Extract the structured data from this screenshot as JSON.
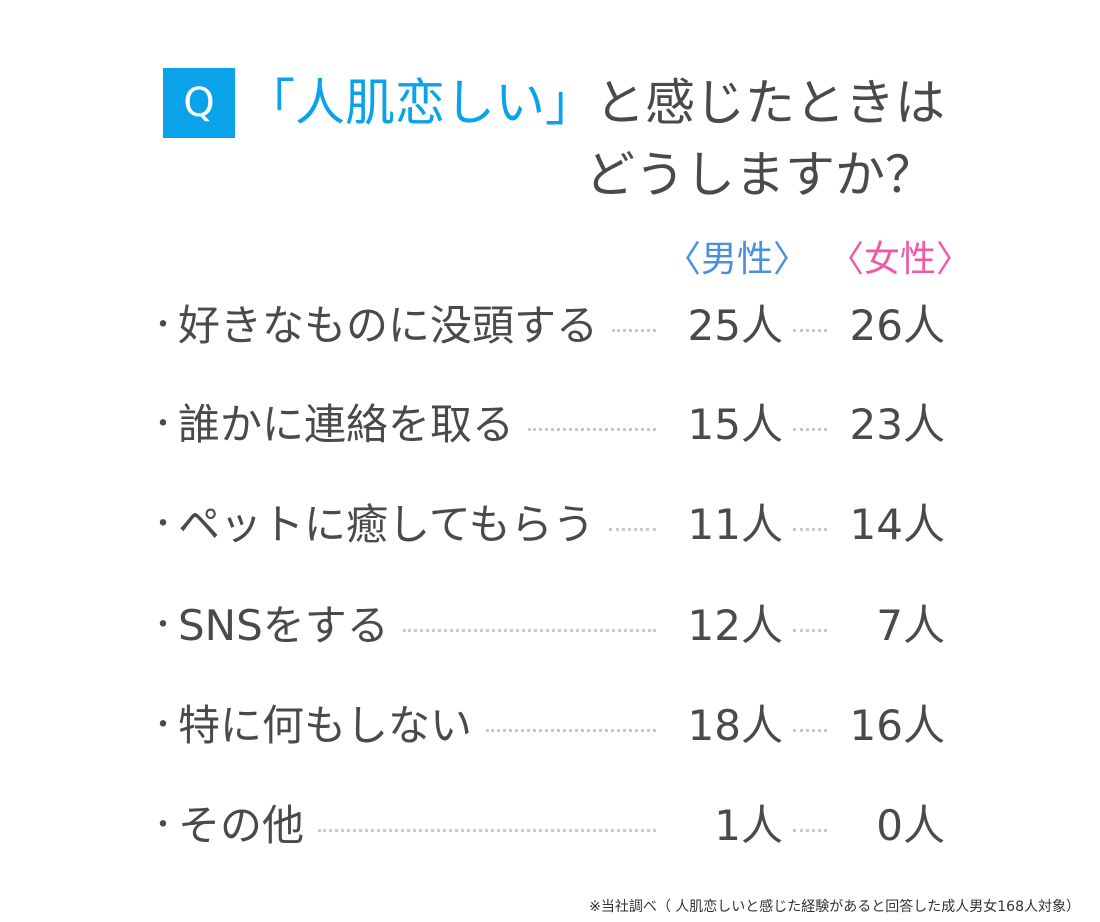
{
  "question": {
    "badge": "Q",
    "highlight": "「人肌恋しい」",
    "line1_rest": "と感じたときは",
    "line2": "どうしますか？"
  },
  "headers": {
    "male": "〈男性〉",
    "female": "〈女性〉"
  },
  "bullet": "・",
  "rows": [
    {
      "label": "好きなものに没頭する",
      "male": "25人",
      "female": "26人"
    },
    {
      "label": "誰かに連絡を取る",
      "male": "15人",
      "female": "23人"
    },
    {
      "label": "ペットに癒してもらう",
      "male": "11人",
      "female": "14人"
    },
    {
      "label": "SNSをする",
      "male": "12人",
      "female": "7人"
    },
    {
      "label": "特に何もしない",
      "male": "18人",
      "female": "16人"
    },
    {
      "label": "その他",
      "male": "1人",
      "female": "0人"
    }
  ],
  "footnote": "※当社調べ（ 人肌恋しいと感じた経験があると回答した成人男女168人対象）",
  "colors": {
    "accent": "#0aa3ea",
    "male": "#4a90e2",
    "female": "#ef5aa8",
    "text": "#4a4a4a"
  }
}
